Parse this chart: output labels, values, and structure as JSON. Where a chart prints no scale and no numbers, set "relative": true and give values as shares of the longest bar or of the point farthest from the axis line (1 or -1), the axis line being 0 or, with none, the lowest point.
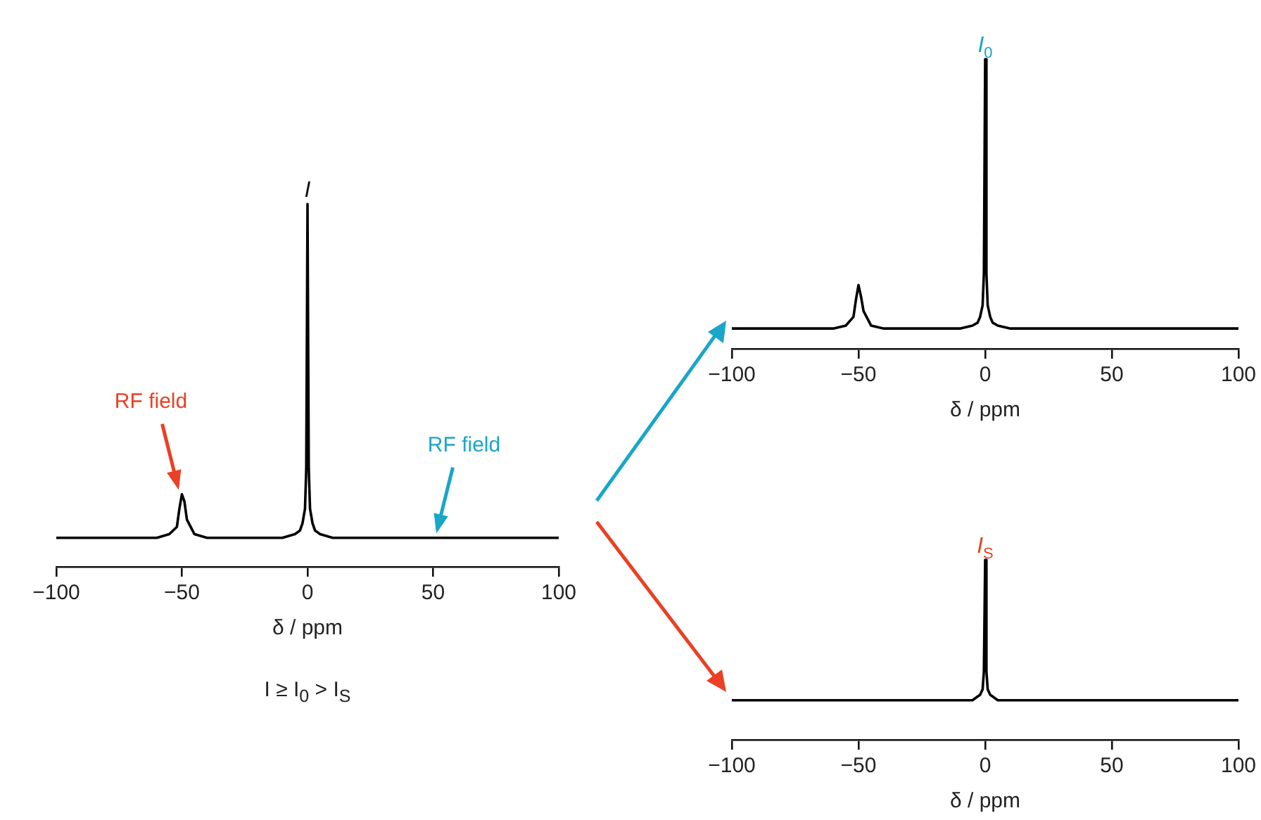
{
  "chart_data": [
    {
      "type": "line",
      "relative": true,
      "xlabel": "δ / ppm",
      "xlim": [
        -100,
        100
      ],
      "xticks": [
        -100,
        -50,
        0,
        50,
        100
      ],
      "tick_labels": "x",
      "grid": false,
      "legend": false,
      "marker": "none",
      "line_style": "solid",
      "x": [
        -100,
        -60,
        -55,
        -52,
        -51,
        -50,
        -49,
        -48,
        -45,
        -40,
        -10,
        -5,
        -3,
        -2,
        -1,
        -0.5,
        0,
        0.5,
        1,
        2,
        3,
        5,
        10,
        100
      ],
      "series": [
        {
          "color": "#000000",
          "values": [
            0.08,
            0.08,
            0.09,
            0.11,
            0.16,
            0.2,
            0.18,
            0.13,
            0.09,
            0.08,
            0.08,
            0.09,
            0.1,
            0.12,
            0.16,
            0.27,
            1,
            0.27,
            0.16,
            0.12,
            0.1,
            0.09,
            0.08,
            0.08
          ]
        }
      ],
      "annotations": [
        {
          "text": "I",
          "x": 0,
          "y": 1
        },
        {
          "text": "RF field",
          "x": -50,
          "y": 0.2
        },
        {
          "text": "RF field",
          "x": 50,
          "y": 0.08
        },
        "I ≥ I$_{0}$ > I$_{S}$"
      ]
    },
    {
      "type": "line",
      "relative": true,
      "xlabel": "δ / ppm",
      "xlim": [
        -100,
        100
      ],
      "xticks": [
        -100,
        -50,
        0,
        50,
        100
      ],
      "tick_labels": "x",
      "grid": false,
      "legend": false,
      "marker": "none",
      "line_style": "solid",
      "x": [
        -100,
        -60,
        -55,
        -52,
        -51,
        -50,
        -49,
        -48,
        -45,
        -40,
        -10,
        -5,
        -3,
        -2,
        -1,
        -0.5,
        0,
        0.5,
        1,
        2,
        3,
        5,
        10,
        100
      ],
      "series": [
        {
          "color": "#000000",
          "values": [
            0.07,
            0.07,
            0.08,
            0.11,
            0.17,
            0.22,
            0.18,
            0.13,
            0.08,
            0.07,
            0.07,
            0.08,
            0.09,
            0.11,
            0.15,
            0.26,
            1,
            0.26,
            0.15,
            0.11,
            0.09,
            0.08,
            0.07,
            0.07
          ]
        }
      ],
      "annotations": [
        {
          "text": "I$_{0}$",
          "x": 0,
          "y": 1
        }
      ]
    },
    {
      "type": "line",
      "relative": true,
      "xlabel": "δ / ppm",
      "xlim": [
        -100,
        100
      ],
      "xticks": [
        -100,
        -50,
        0,
        50,
        100
      ],
      "tick_labels": "x",
      "grid": false,
      "legend": false,
      "marker": "none",
      "line_style": "solid",
      "x": [
        -100,
        -10,
        -5,
        -3,
        -2,
        -1,
        -0.5,
        0,
        0.5,
        1,
        2,
        3,
        5,
        10,
        100
      ],
      "series": [
        {
          "color": "#000000",
          "values": [
            0.22,
            0.22,
            0.22,
            0.24,
            0.25,
            0.28,
            0.38,
            1,
            0.38,
            0.28,
            0.25,
            0.24,
            0.22,
            0.22,
            0.22
          ]
        }
      ],
      "annotations": [
        {
          "text": "I$_{S}$",
          "x": 0,
          "y": 1
        }
      ]
    }
  ]
}
